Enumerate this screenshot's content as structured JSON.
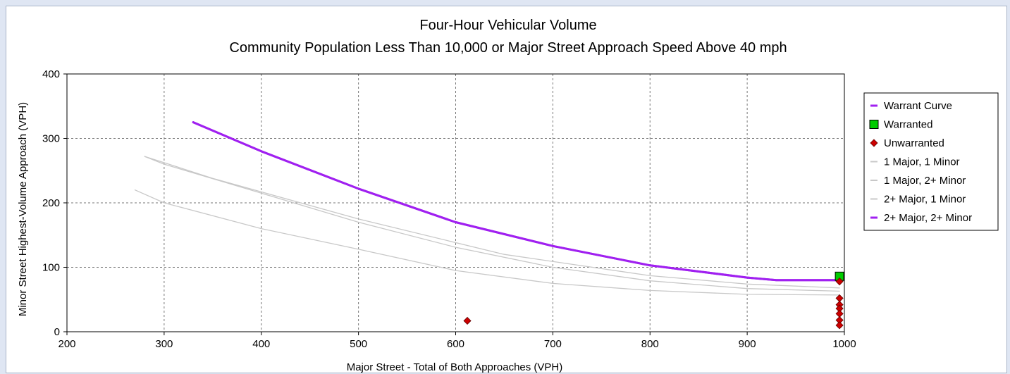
{
  "chart_data": {
    "type": "line",
    "title": "Four-Hour Vehicular Volume",
    "subtitle": "Community Population Less Than 10,000 or Major Street Approach Speed Above 40 mph",
    "xlabel": "Major Street - Total of Both Approaches (VPH)",
    "ylabel": "Minor Street Highest-Volume Approach (VPH)",
    "xlim": [
      200,
      1000
    ],
    "ylim": [
      0,
      400
    ],
    "xticks": [
      200,
      300,
      400,
      500,
      600,
      700,
      800,
      900,
      1000
    ],
    "yticks": [
      0,
      100,
      200,
      300,
      400
    ],
    "grid": true,
    "legend_position": "right",
    "series": [
      {
        "name": "Warrant Curve",
        "kind": "line",
        "color": "#a020f0",
        "points": [
          [
            330,
            325
          ],
          [
            400,
            280
          ],
          [
            500,
            222
          ],
          [
            600,
            170
          ],
          [
            700,
            133
          ],
          [
            800,
            103
          ],
          [
            900,
            84
          ],
          [
            930,
            80
          ],
          [
            995,
            80
          ]
        ]
      },
      {
        "name": "Warranted",
        "kind": "square-marker",
        "color": "#00cc00",
        "points": [
          [
            995,
            86
          ]
        ]
      },
      {
        "name": "Unwarranted",
        "kind": "diamond-marker",
        "color": "#cc0000",
        "points": [
          [
            612,
            17
          ],
          [
            995,
            78
          ],
          [
            995,
            52
          ],
          [
            995,
            42
          ],
          [
            995,
            36
          ],
          [
            995,
            28
          ],
          [
            995,
            18
          ],
          [
            995,
            10
          ]
        ]
      },
      {
        "name": "1 Major, 1 Minor",
        "kind": "line",
        "color": "#c8c8c8",
        "points": [
          [
            270,
            220
          ],
          [
            300,
            200
          ],
          [
            400,
            160
          ],
          [
            500,
            128
          ],
          [
            600,
            95
          ],
          [
            700,
            75
          ],
          [
            800,
            64
          ],
          [
            900,
            58
          ],
          [
            995,
            57
          ]
        ]
      },
      {
        "name": "1 Major, 2+ Minor",
        "kind": "line",
        "color": "#c8c8c8",
        "points": [
          [
            280,
            272
          ],
          [
            300,
            260
          ],
          [
            400,
            215
          ],
          [
            500,
            170
          ],
          [
            600,
            131
          ],
          [
            700,
            100
          ],
          [
            800,
            79
          ],
          [
            900,
            67
          ],
          [
            995,
            63
          ]
        ]
      },
      {
        "name": "2+ Major, 1 Minor",
        "kind": "line",
        "color": "#c8c8c8",
        "points": [
          [
            280,
            272
          ],
          [
            350,
            238
          ],
          [
            500,
            175
          ],
          [
            650,
            120
          ],
          [
            800,
            87
          ],
          [
            900,
            74
          ],
          [
            995,
            68
          ]
        ]
      },
      {
        "name": "2+ Major, 2+ Minor",
        "kind": "line",
        "color": "#a020f0",
        "points": [
          [
            330,
            325
          ],
          [
            400,
            280
          ],
          [
            500,
            222
          ],
          [
            600,
            170
          ],
          [
            700,
            133
          ],
          [
            800,
            103
          ],
          [
            900,
            84
          ],
          [
            930,
            80
          ],
          [
            995,
            80
          ]
        ]
      }
    ]
  }
}
